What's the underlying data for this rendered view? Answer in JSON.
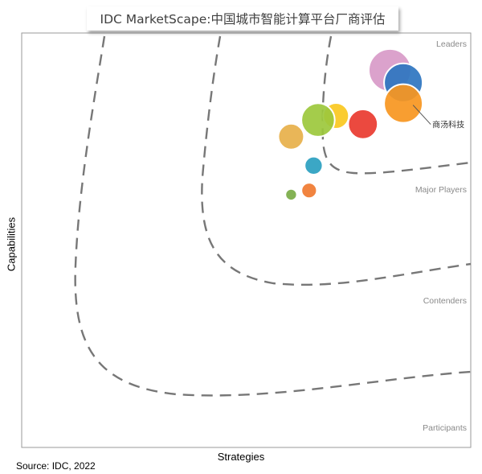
{
  "chart_data": {
    "type": "scatter",
    "title": "IDC MarketScape:中国城市智能计算平台厂商评估",
    "xlabel": "Strategies",
    "ylabel": "Capabilities",
    "source": "Source: IDC, 2022",
    "xlim": [
      0,
      1
    ],
    "ylim": [
      0,
      1
    ],
    "grid": false,
    "categories": [
      "Leaders",
      "Major Players",
      "Contenders",
      "Participants"
    ],
    "points": [
      {
        "x": 0.82,
        "y": 0.91,
        "size": 0.33,
        "color": "#d89ac8"
      },
      {
        "x": 0.85,
        "y": 0.88,
        "size": 0.3,
        "color": "#2e75c0"
      },
      {
        "x": 0.76,
        "y": 0.78,
        "size": 0.23,
        "color": "#e93a2f"
      },
      {
        "x": 0.85,
        "y": 0.83,
        "size": 0.3,
        "color": "#f7961f",
        "label": "商汤科技"
      },
      {
        "x": 0.7,
        "y": 0.8,
        "size": 0.2,
        "color": "#fac820"
      },
      {
        "x": 0.66,
        "y": 0.79,
        "size": 0.26,
        "color": "#9cc83c"
      },
      {
        "x": 0.6,
        "y": 0.75,
        "size": 0.2,
        "color": "#e7b04a"
      },
      {
        "x": 0.65,
        "y": 0.68,
        "size": 0.14,
        "color": "#2aa0c0"
      },
      {
        "x": 0.64,
        "y": 0.62,
        "size": 0.12,
        "color": "#f07a30"
      },
      {
        "x": 0.6,
        "y": 0.61,
        "size": 0.09,
        "color": "#7aab47"
      }
    ]
  }
}
